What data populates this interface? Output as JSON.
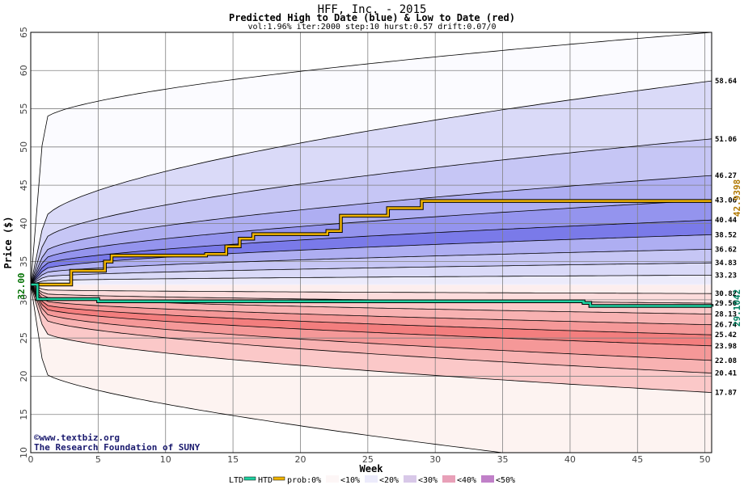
{
  "header": {
    "title": "HFF, Inc. - 2015",
    "subtitle": "Predicted High to Date (blue) &  Low to Date (red)",
    "params": "vol:1.96% iter:2000 step:10 hurst:0.57 drift:0.07/0"
  },
  "watermark": {
    "line1": "©www.textbiz.org",
    "line2": "The Research Foundation of SUNY"
  },
  "legend": {
    "ltd": "LTD",
    "htd": "HTD",
    "prob": "prob:0%",
    "b10": "<10%",
    "b20": "<20%",
    "b30": "<30%",
    "b40": "<40%",
    "b50": "<50%"
  },
  "colors": {
    "htd": "#f0b400",
    "ltd": "#20d0a0",
    "start": "#007000",
    "htd_final": "#b07800",
    "ltd_final": "#008060"
  },
  "chart_data": {
    "type": "area",
    "title": "HFF, Inc. - 2015",
    "subtitle": "Predicted High to Date (blue) &  Low to Date (red)",
    "xlabel": "Week",
    "ylabel": "Price ($)",
    "xlim": [
      0,
      50.5
    ],
    "ylim": [
      10,
      65
    ],
    "xticks": [
      0,
      5,
      10,
      15,
      20,
      25,
      30,
      35,
      40,
      45,
      50
    ],
    "yticks": [
      10,
      15,
      20,
      25,
      30,
      35,
      40,
      45,
      50,
      55,
      60,
      65
    ],
    "grid": true,
    "start_price": "32.00",
    "htd_final": "42.9398",
    "ltd_final": "29.1042",
    "end_labels": [
      "58.64",
      "51.06",
      "46.27",
      "43.06",
      "40.44",
      "38.52",
      "36.62",
      "34.83",
      "33.23",
      "30.82",
      "29.56",
      "28.13",
      "26.74",
      "25.42",
      "23.98",
      "22.08",
      "20.41",
      "17.87"
    ],
    "high_bands": [
      {
        "name": "prob 0%",
        "end": 65.0,
        "first": 53.6,
        "cap": 65
      },
      {
        "name": "<10%",
        "end": 58.64,
        "first": 40.5
      },
      {
        "name": "<20%",
        "end": 51.06,
        "first": 37.8
      },
      {
        "name": "<30%",
        "end": 46.27,
        "first": 36.2
      },
      {
        "name": "<40%",
        "end": 43.06,
        "first": 35.3
      },
      {
        "name": "<50%",
        "end": 40.44,
        "first": 34.6
      },
      {
        "name": "<40%",
        "end": 38.52,
        "first": 34.0
      },
      {
        "name": "<30%",
        "end": 36.62,
        "first": 33.5
      },
      {
        "name": "<20%",
        "end": 34.83,
        "first": 33.0
      },
      {
        "name": "<10%",
        "end": 33.23,
        "first": 32.5
      }
    ],
    "low_bands": [
      {
        "name": "<10%",
        "end": 30.82,
        "first": 31.3
      },
      {
        "name": "<20%",
        "end": 29.56,
        "first": 30.8
      },
      {
        "name": "<30%",
        "end": 28.13,
        "first": 30.4
      },
      {
        "name": "<40%",
        "end": 26.74,
        "first": 29.9
      },
      {
        "name": "<50%",
        "end": 25.42,
        "first": 29.4
      },
      {
        "name": "<40%",
        "end": 23.98,
        "first": 28.9
      },
      {
        "name": "<30%",
        "end": 22.08,
        "first": 28.3
      },
      {
        "name": "<20%",
        "end": 20.41,
        "first": 27.5
      },
      {
        "name": "<10%",
        "end": 17.87,
        "first": 25.8
      },
      {
        "name": "prob 0%",
        "end": 10.0,
        "first": 20.5,
        "floor_week": 35
      }
    ],
    "series": [
      {
        "name": "HTD",
        "x": [
          0,
          2.5,
          3,
          5,
          5.5,
          6,
          13,
          14.5,
          15.5,
          16.5,
          22,
          23,
          26.5,
          29,
          50.5
        ],
        "y": [
          32.0,
          32.0,
          33.8,
          33.8,
          35.0,
          35.8,
          36.0,
          37.0,
          38.0,
          38.6,
          39.0,
          41.0,
          42.0,
          42.94,
          42.94
        ]
      },
      {
        "name": "LTD",
        "x": [
          0,
          0.5,
          5,
          20,
          41,
          41.5,
          50,
          50.5
        ],
        "y": [
          32.0,
          30.1,
          29.8,
          29.8,
          29.6,
          29.2,
          29.2,
          29.1
        ]
      }
    ]
  }
}
